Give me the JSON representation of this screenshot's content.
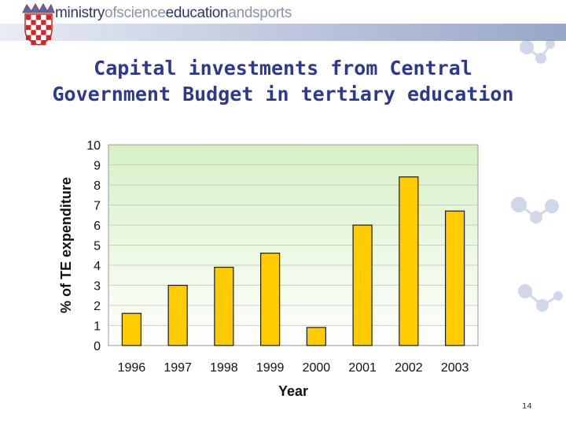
{
  "header": {
    "brand_parts": [
      "ministry",
      "of",
      "science",
      "education",
      "and",
      "sports"
    ]
  },
  "slide": {
    "title_line1": "Capital investments from Central",
    "title_line2": "Government Budget in tertiary education",
    "page_number": "14"
  },
  "colors": {
    "bar": "#FFCC00",
    "bar_stroke": "#1a1a1a",
    "plot_bg_top": "#d7f0c6",
    "plot_bg_bottom": "#ffffff",
    "title": "#2d3a8c"
  },
  "chart_data": {
    "type": "bar",
    "title": "",
    "xlabel": "Year",
    "ylabel": "% of TE expenditure",
    "categories": [
      "1996",
      "1997",
      "1998",
      "1999",
      "2000",
      "2001",
      "2002",
      "2003"
    ],
    "values": [
      1.6,
      3.0,
      3.9,
      4.6,
      0.9,
      6.0,
      8.4,
      6.7
    ],
    "ylim": [
      0,
      10
    ],
    "yticks": [
      0,
      1,
      2,
      3,
      4,
      5,
      6,
      7,
      8,
      9,
      10
    ],
    "grid": true,
    "legend": "none"
  }
}
